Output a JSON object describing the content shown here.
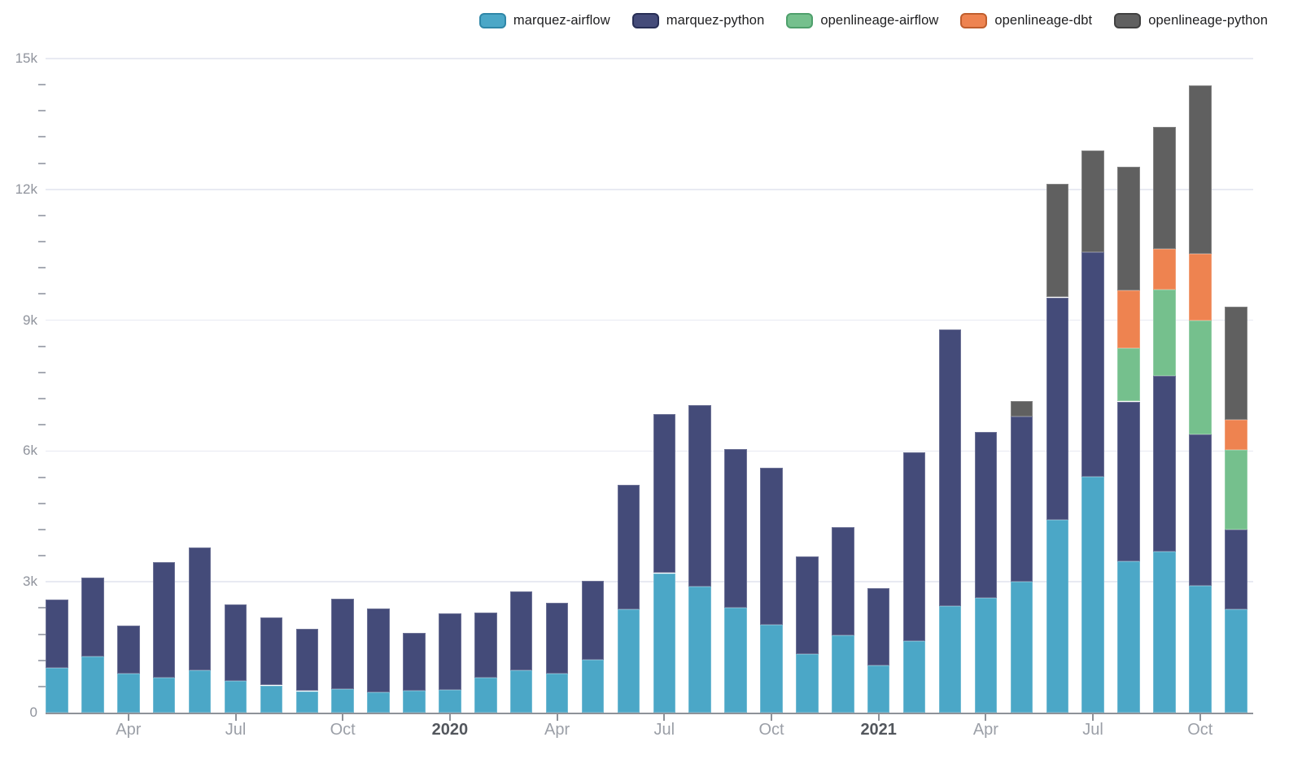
{
  "chart_data": {
    "type": "bar",
    "stacked": true,
    "title": "",
    "xlabel": "",
    "ylabel": "",
    "legend_position": "top-right",
    "grid": "horizontal-major-only",
    "categories": [
      "Feb 2019",
      "Mar 2019",
      "Apr 2019",
      "May 2019",
      "Jun 2019",
      "Jul 2019",
      "Aug 2019",
      "Sep 2019",
      "Oct 2019",
      "Nov 2019",
      "Dec 2019",
      "Jan 2020",
      "Feb 2020",
      "Mar 2020",
      "Apr 2020",
      "May 2020",
      "Jun 2020",
      "Jul 2020",
      "Aug 2020",
      "Sep 2020",
      "Oct 2020",
      "Nov 2020",
      "Dec 2020",
      "Jan 2021",
      "Feb 2021",
      "Mar 2021",
      "Apr 2021",
      "May 2021",
      "Jun 2021",
      "Jul 2021",
      "Aug 2021",
      "Sep 2021",
      "Oct 2021",
      "Nov 2021"
    ],
    "series": [
      {
        "name": "marquez-airflow",
        "color": "#4BA7C7",
        "border_color": "#2F87A8",
        "values": [
          1030,
          1280,
          900,
          800,
          965,
          725,
          625,
          495,
          545,
          465,
          505,
          515,
          795,
          970,
          900,
          1215,
          2375,
          3200,
          2885,
          2405,
          2015,
          1340,
          1770,
          1085,
          1635,
          2440,
          2625,
          3000,
          4425,
          5420,
          3465,
          3690,
          2920,
          2375
        ]
      },
      {
        "name": "marquez-python",
        "color": "#444B79",
        "border_color": "#272E55",
        "values": [
          1565,
          1810,
          1105,
          2655,
          2815,
          1765,
          1555,
          1425,
          2065,
          1930,
          1315,
          1770,
          1500,
          1810,
          1620,
          1800,
          2845,
          3655,
          4175,
          3645,
          3600,
          2235,
          2490,
          1770,
          4330,
          6350,
          3805,
          3800,
          5100,
          5140,
          3670,
          4035,
          3460,
          1820
        ]
      },
      {
        "name": "openlineage-airflow",
        "color": "#75C08D",
        "border_color": "#4FA06C",
        "values": [
          0,
          0,
          0,
          0,
          0,
          0,
          0,
          0,
          0,
          0,
          0,
          0,
          0,
          0,
          0,
          0,
          0,
          0,
          0,
          0,
          0,
          0,
          0,
          0,
          0,
          0,
          0,
          0,
          0,
          0,
          1230,
          1975,
          2620,
          1825
        ]
      },
      {
        "name": "openlineage-dbt",
        "color": "#EE8350",
        "border_color": "#C05E2D",
        "values": [
          0,
          0,
          0,
          0,
          0,
          0,
          0,
          0,
          0,
          0,
          0,
          0,
          0,
          0,
          0,
          0,
          0,
          0,
          0,
          0,
          0,
          0,
          0,
          0,
          0,
          0,
          0,
          0,
          0,
          0,
          1315,
          930,
          1525,
          700
        ]
      },
      {
        "name": "openlineage-python",
        "color": "#606060",
        "border_color": "#404040",
        "values": [
          0,
          0,
          0,
          0,
          0,
          0,
          0,
          0,
          0,
          0,
          0,
          0,
          0,
          0,
          0,
          0,
          0,
          0,
          0,
          0,
          0,
          0,
          0,
          0,
          0,
          0,
          0,
          345,
          2605,
          2340,
          2845,
          2805,
          3860,
          2590
        ]
      }
    ],
    "y_axis": {
      "min": 0,
      "max": 15000,
      "major_step": 3000,
      "minor_step": 600,
      "tick_labels": [
        "0",
        "3k",
        "6k",
        "9k",
        "12k",
        "15k"
      ]
    },
    "x_axis": {
      "labeled_ticks": [
        {
          "index": 2,
          "label": "Apr",
          "year": false
        },
        {
          "index": 5,
          "label": "Jul",
          "year": false
        },
        {
          "index": 8,
          "label": "Oct",
          "year": false
        },
        {
          "index": 11,
          "label": "2020",
          "year": true
        },
        {
          "index": 14,
          "label": "Apr",
          "year": false
        },
        {
          "index": 17,
          "label": "Jul",
          "year": false
        },
        {
          "index": 20,
          "label": "Oct",
          "year": false
        },
        {
          "index": 23,
          "label": "2021",
          "year": true
        },
        {
          "index": 26,
          "label": "Apr",
          "year": false
        },
        {
          "index": 29,
          "label": "Jul",
          "year": false
        },
        {
          "index": 32,
          "label": "Oct",
          "year": false
        }
      ]
    }
  },
  "colors": {
    "background": "#ffffff",
    "gridline": "#E8EAF2",
    "axis_line": "#8E9299",
    "minor_tick": "#A7ABB4",
    "x_tick": "#8E9299",
    "y_label": "#8F939C",
    "x_label_month": "#9B9FA7",
    "x_label_year": "#53575D",
    "legend_text": "#1E1E20"
  }
}
